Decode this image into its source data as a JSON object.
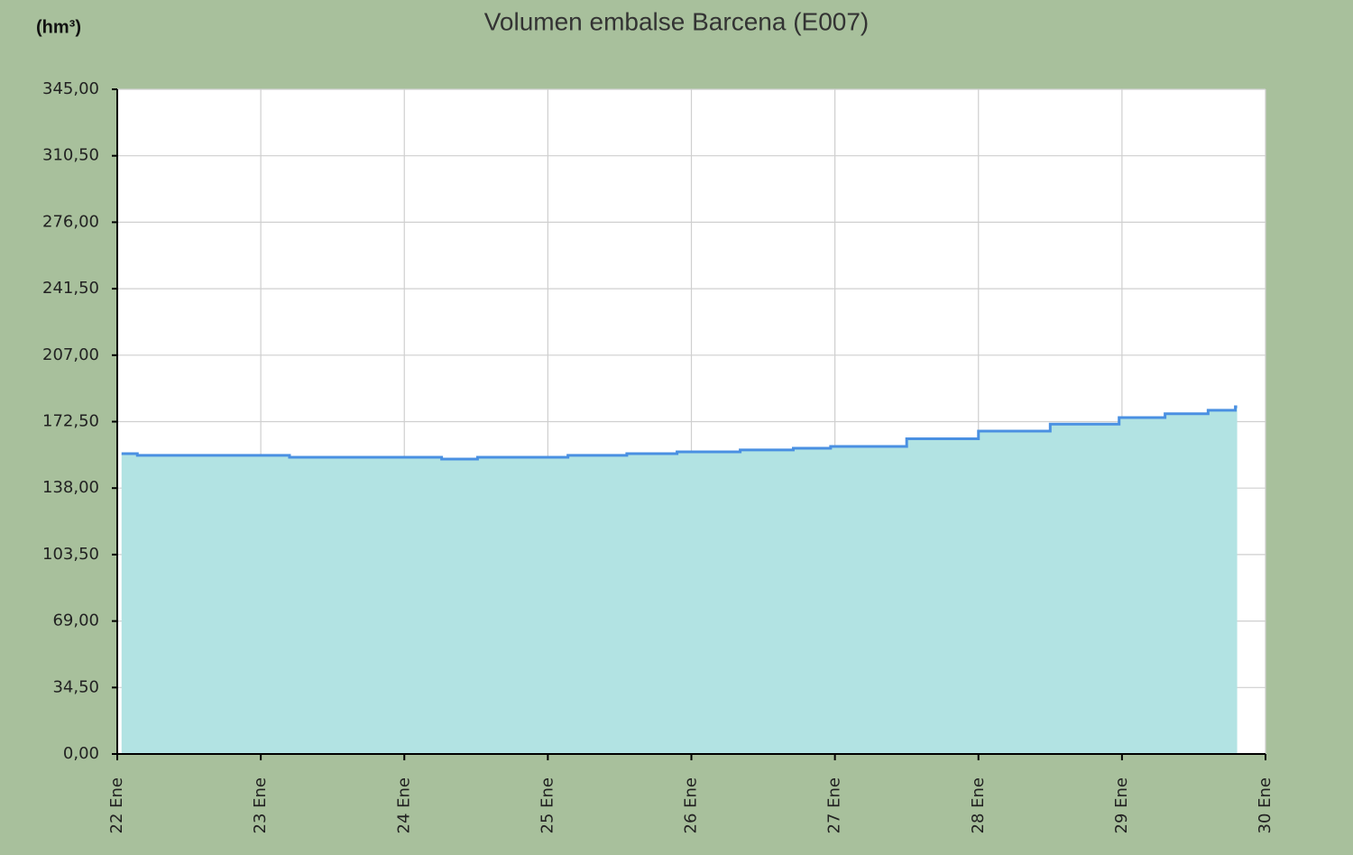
{
  "chart_data": {
    "type": "area",
    "title": "Volumen embalse Barcena  (E007)",
    "y_label": "(hm³)",
    "x": [
      22.03,
      22.14,
      23.2,
      24.26,
      24.51,
      25.14,
      25.55,
      25.9,
      26.34,
      26.71,
      26.97,
      27.5,
      28.0,
      28.5,
      28.98,
      29.3,
      29.6,
      29.79
    ],
    "values": [
      155.9,
      155.0,
      154.0,
      153.1,
      154.0,
      155.0,
      155.9,
      156.8,
      157.8,
      158.7,
      159.6,
      163.6,
      167.6,
      171.2,
      174.6,
      176.6,
      178.4,
      180.2
    ],
    "line_color": "#4a90e2",
    "fill_color": "#b2e3e3",
    "xlim": [
      22,
      30
    ],
    "xticks": [
      {
        "value": 22,
        "label": "22 Ene"
      },
      {
        "value": 23,
        "label": "23 Ene"
      },
      {
        "value": 24,
        "label": "24 Ene"
      },
      {
        "value": 25,
        "label": "25 Ene"
      },
      {
        "value": 26,
        "label": "26 Ene"
      },
      {
        "value": 27,
        "label": "27 Ene"
      },
      {
        "value": 28,
        "label": "28 Ene"
      },
      {
        "value": 29,
        "label": "29 Ene"
      },
      {
        "value": 30,
        "label": "30 Ene"
      }
    ],
    "ylim": [
      0,
      345
    ],
    "yticks": [
      {
        "value": 0,
        "label": "0,00"
      },
      {
        "value": 34.5,
        "label": "34,50"
      },
      {
        "value": 69,
        "label": "69,00"
      },
      {
        "value": 103.5,
        "label": "103,50"
      },
      {
        "value": 138,
        "label": "138,00"
      },
      {
        "value": 172.5,
        "label": "172,50"
      },
      {
        "value": 207,
        "label": "207,00"
      },
      {
        "value": 241.5,
        "label": "241,50"
      },
      {
        "value": 276,
        "label": "276,00"
      },
      {
        "value": 310.5,
        "label": "310,50"
      },
      {
        "value": 345,
        "label": "345,00"
      }
    ],
    "grid": true
  }
}
